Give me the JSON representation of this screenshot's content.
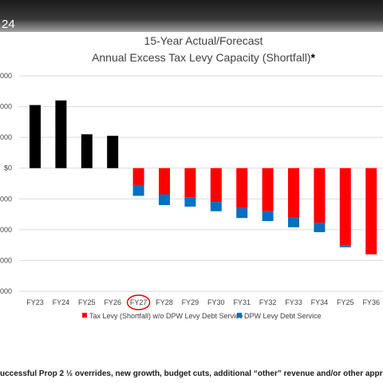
{
  "window": {
    "header_fragment": "24"
  },
  "chart_data": {
    "type": "bar",
    "stacked": true,
    "title": "15-Year Actual/Forecast",
    "subtitle": "Annual Excess Tax Levy Capacity (Shortfall)",
    "subtitle_mark": "*",
    "categories": [
      "FY23",
      "FY24",
      "FY25",
      "FY26",
      "FY27",
      "FY28",
      "FY29",
      "FY30",
      "FY31",
      "FY32",
      "FY33",
      "FY34",
      "FY25",
      "FY36"
    ],
    "highlighted_category": "FY27",
    "y_tick_labels": [
      ",000",
      ",000",
      ",000",
      "$0",
      ",000",
      ",000",
      ",000",
      ",000"
    ],
    "y_tick_values": [
      3000,
      2000,
      1000,
      0,
      -1000,
      -2000,
      -3000,
      -4000
    ],
    "ylim": [
      -4000,
      3000
    ],
    "grid": true,
    "legend_position": "bottom",
    "series": [
      {
        "name": "",
        "color": "#000000",
        "values": [
          2050,
          2200,
          1100,
          1050,
          0,
          0,
          0,
          0,
          0,
          0,
          0,
          0,
          0,
          0
        ]
      },
      {
        "name": "Tax Levy (Shortfall) w/o DPW Levy Debt Service",
        "color": "#ff0000",
        "values": [
          0,
          0,
          0,
          0,
          -550,
          -850,
          -950,
          -1100,
          -1300,
          -1400,
          -1600,
          -1780,
          -2500,
          -2800
        ]
      },
      {
        "name": "DPW Levy Debt Service",
        "color": "#0070c0",
        "values": [
          0,
          0,
          0,
          0,
          -350,
          -350,
          -300,
          -300,
          -320,
          -320,
          -320,
          -300,
          -70,
          0
        ]
      }
    ]
  },
  "footnote": "uccessful Prop 2 ½ overrides, new growth, budget cuts, additional “other” revenue and/or other appr"
}
